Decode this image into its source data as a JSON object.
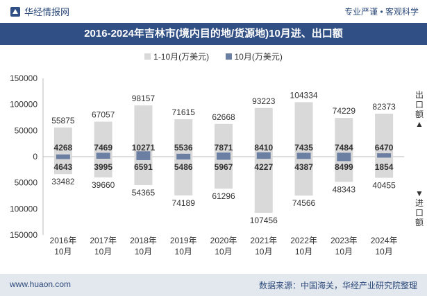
{
  "header": {
    "brand": "华经情报网",
    "tagline": "专业严谨 • 客观科学"
  },
  "title": "2016-2024年吉林市(境内目的地/货源地)10月进、出口额",
  "footer": {
    "left": "www.huaon.com",
    "right": "数据来源：中国海关，华经产业研究院整理"
  },
  "side_labels": {
    "export": "出口额▲",
    "import": "▼进口额"
  },
  "colors": {
    "cumulative": "#d9d9d9",
    "monthly": "#6b7fa3",
    "header_bg": "#2f4f85",
    "footer_bg": "#e3e7ee"
  },
  "chart_data": {
    "type": "bar",
    "categories": [
      "2016年\n10月",
      "2017年\n10月",
      "2018年\n10月",
      "2019年\n10月",
      "2020年\n10月",
      "2021年\n10月",
      "2022年\n10月",
      "2023年\n10月",
      "2024年\n10月"
    ],
    "series": [
      {
        "name": "1-10月(万美元)",
        "export": [
          55875,
          67057,
          98157,
          71615,
          62668,
          93223,
          104334,
          74229,
          82373
        ],
        "import": [
          33482,
          39660,
          54365,
          74189,
          61296,
          107456,
          74566,
          48343,
          40455
        ]
      },
      {
        "name": "10月(万美元)",
        "export": [
          4268,
          7469,
          10271,
          5536,
          7871,
          8410,
          7435,
          7484,
          6470
        ],
        "import": [
          4643,
          3995,
          6591,
          5486,
          5967,
          4227,
          4387,
          8499,
          1854
        ]
      }
    ],
    "y_ticks": [
      "150000",
      "100000",
      "50000",
      "0",
      "50000",
      "100000",
      "150000"
    ],
    "ylim": [
      -150000,
      150000
    ],
    "legend_position": "top-center"
  }
}
